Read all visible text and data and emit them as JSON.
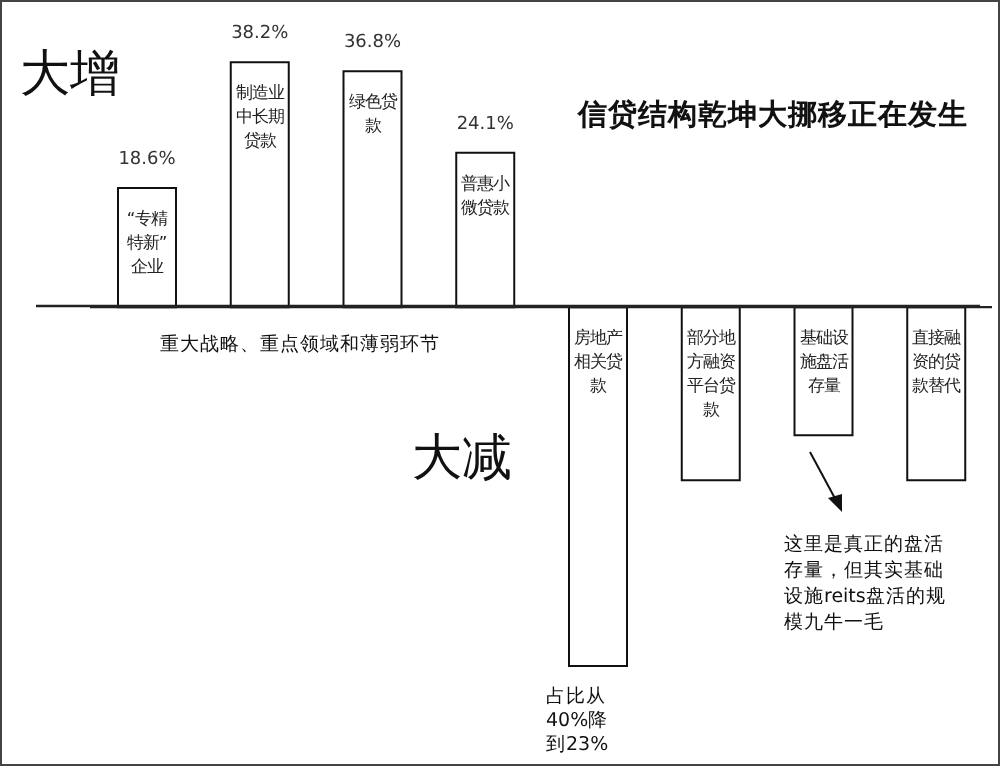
{
  "chart_data": {
    "type": "bar",
    "title": "信贷结构乾坤大挪移正在发生",
    "categories": [
      "“专精特新”企业",
      "制造业中长期贷款",
      "绿色贷款",
      "普惠小微贷款",
      "房地产相关贷款",
      "部分地方融资平台贷款",
      "基础设施盘活存量",
      "直接融资的贷款替代"
    ],
    "values": [
      18.6,
      38.2,
      36.8,
      24.1,
      -56,
      -27,
      -20,
      -27
    ],
    "value_labels": [
      "18.6%",
      "38.2%",
      "36.8%",
      "24.1%",
      null,
      null,
      null,
      null
    ],
    "color": "#ffffff",
    "annotations": [
      "大增",
      "重大战略、重点领域和薄弱环节",
      "大减",
      "占比从40%降到23%",
      "这里是真正的盘活存量，但其实基础设施reits盘活的规模九牛一毛"
    ]
  }
}
